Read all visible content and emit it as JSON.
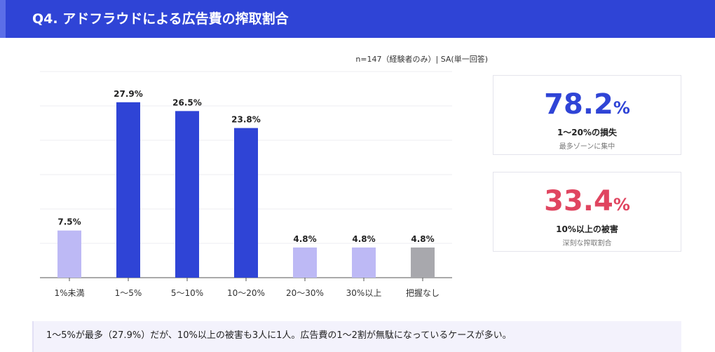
{
  "header": {
    "title": "Q4. アドフラウドによる広告費の搾取割合"
  },
  "meta": {
    "sample_note": "n=147（経験者のみ）| SA(単一回答)"
  },
  "chart_data": {
    "type": "bar",
    "categories": [
      "1%未満",
      "1〜5%",
      "5〜10%",
      "10〜20%",
      "20〜30%",
      "30%以上",
      "把握なし"
    ],
    "values": [
      7.5,
      27.9,
      26.5,
      23.8,
      4.8,
      4.8,
      4.8
    ],
    "data_labels": [
      "7.5%",
      "27.9%",
      "26.5%",
      "23.8%",
      "4.8%",
      "4.8%",
      "4.8%"
    ],
    "colors": [
      "#bdb9f5",
      "#2f44d6",
      "#2f44d6",
      "#2f44d6",
      "#bdb9f5",
      "#bdb9f5",
      "#a8a8ad"
    ],
    "ylim": [
      0,
      30
    ],
    "grid": true,
    "legend": "none"
  },
  "stats": [
    {
      "value": "78.2",
      "unit": "%",
      "label": "1〜20%の損失",
      "sub": "最多ゾーンに集中"
    },
    {
      "value": "33.4",
      "unit": "%",
      "label": "10%以上の被害",
      "sub": "深刻な搾取割合"
    }
  ],
  "note": {
    "text": "1〜5%が最多（27.9%）だが、10%以上の被害も3人に1人。広告費の1〜2割が無駄になっているケースが多い。"
  }
}
